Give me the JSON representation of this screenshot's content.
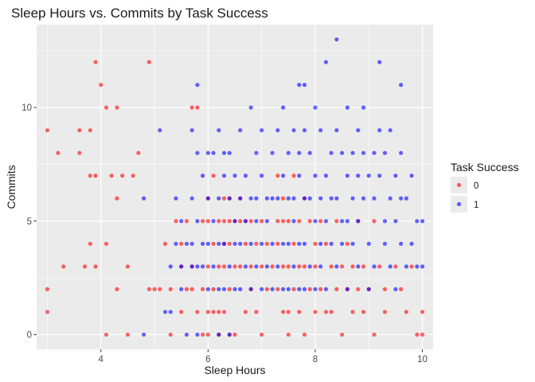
{
  "chart_data": {
    "type": "scatter",
    "title": "Sleep Hours vs. Commits by Task Success",
    "xlabel": "Sleep Hours",
    "ylabel": "Commits",
    "xlim": [
      2.8,
      10.2
    ],
    "ylim": [
      -0.65,
      13.65
    ],
    "x_ticks": [
      4,
      6,
      8,
      10
    ],
    "y_ticks": [
      0,
      5,
      10
    ],
    "grid": true,
    "legend": {
      "title": "Task Success",
      "placement": "right"
    },
    "series": [
      {
        "name": "0",
        "color": "#ff0000",
        "points": [
          [
            3.0,
            9
          ],
          [
            3.0,
            2
          ],
          [
            3.0,
            1
          ],
          [
            3.2,
            8
          ],
          [
            3.3,
            3
          ],
          [
            3.6,
            9
          ],
          [
            3.6,
            8
          ],
          [
            3.7,
            3
          ],
          [
            3.8,
            9
          ],
          [
            3.8,
            7
          ],
          [
            3.8,
            4
          ],
          [
            3.9,
            12
          ],
          [
            3.9,
            7
          ],
          [
            3.9,
            3
          ],
          [
            4.0,
            11
          ],
          [
            4.1,
            10
          ],
          [
            4.1,
            4
          ],
          [
            4.1,
            0
          ],
          [
            4.2,
            7
          ],
          [
            4.3,
            10
          ],
          [
            4.3,
            6
          ],
          [
            4.3,
            2
          ],
          [
            4.4,
            7
          ],
          [
            4.5,
            3
          ],
          [
            4.5,
            0
          ],
          [
            4.6,
            7
          ],
          [
            4.7,
            8
          ],
          [
            4.9,
            12
          ],
          [
            4.9,
            2
          ],
          [
            5.0,
            2
          ],
          [
            5.1,
            2
          ],
          [
            5.2,
            4
          ],
          [
            5.3,
            2
          ],
          [
            5.3,
            0
          ],
          [
            5.4,
            5
          ],
          [
            5.5,
            4
          ],
          [
            5.5,
            3
          ],
          [
            5.5,
            1
          ],
          [
            5.6,
            5
          ],
          [
            5.6,
            2
          ],
          [
            5.7,
            10
          ],
          [
            5.7,
            3
          ],
          [
            5.7,
            2
          ],
          [
            5.8,
            10
          ],
          [
            5.8,
            1
          ],
          [
            5.9,
            5
          ],
          [
            5.9,
            2
          ],
          [
            5.9,
            0
          ],
          [
            6.0,
            6
          ],
          [
            6.0,
            5
          ],
          [
            6.0,
            3
          ],
          [
            6.0,
            1
          ],
          [
            6.0,
            0
          ],
          [
            6.1,
            7
          ],
          [
            6.1,
            4
          ],
          [
            6.1,
            2
          ],
          [
            6.1,
            1
          ],
          [
            6.2,
            5
          ],
          [
            6.2,
            3
          ],
          [
            6.2,
            1
          ],
          [
            6.2,
            0
          ],
          [
            6.3,
            6
          ],
          [
            6.3,
            5
          ],
          [
            6.3,
            4
          ],
          [
            6.3,
            3
          ],
          [
            6.3,
            1
          ],
          [
            6.4,
            6
          ],
          [
            6.4,
            5
          ],
          [
            6.4,
            4
          ],
          [
            6.4,
            2
          ],
          [
            6.4,
            0
          ],
          [
            6.5,
            5
          ],
          [
            6.5,
            3
          ],
          [
            6.5,
            0
          ],
          [
            6.6,
            6
          ],
          [
            6.6,
            5
          ],
          [
            6.6,
            3
          ],
          [
            6.7,
            5
          ],
          [
            6.7,
            4
          ],
          [
            6.7,
            1
          ],
          [
            6.8,
            5
          ],
          [
            6.8,
            3
          ],
          [
            6.8,
            2
          ],
          [
            6.9,
            4
          ],
          [
            6.9,
            1
          ],
          [
            7.0,
            5
          ],
          [
            7.0,
            3
          ],
          [
            7.0,
            0
          ],
          [
            7.1,
            4
          ],
          [
            7.1,
            2
          ],
          [
            7.2,
            3
          ],
          [
            7.3,
            7
          ],
          [
            7.3,
            5
          ],
          [
            7.3,
            4
          ],
          [
            7.3,
            2
          ],
          [
            7.4,
            6
          ],
          [
            7.4,
            5
          ],
          [
            7.4,
            3
          ],
          [
            7.4,
            1
          ],
          [
            7.5,
            5
          ],
          [
            7.5,
            3
          ],
          [
            7.5,
            1
          ],
          [
            7.5,
            0
          ],
          [
            7.6,
            7
          ],
          [
            7.6,
            4
          ],
          [
            7.6,
            2
          ],
          [
            7.7,
            5
          ],
          [
            7.7,
            3
          ],
          [
            7.7,
            1
          ],
          [
            7.8,
            6
          ],
          [
            7.8,
            3
          ],
          [
            7.8,
            0
          ],
          [
            7.9,
            5
          ],
          [
            7.9,
            2
          ],
          [
            8.0,
            4
          ],
          [
            8.0,
            3
          ],
          [
            8.0,
            1
          ],
          [
            8.1,
            5
          ],
          [
            8.1,
            2
          ],
          [
            8.2,
            4
          ],
          [
            8.2,
            1
          ],
          [
            8.3,
            3
          ],
          [
            8.3,
            1
          ],
          [
            8.4,
            5
          ],
          [
            8.4,
            2
          ],
          [
            8.5,
            3
          ],
          [
            8.5,
            0
          ],
          [
            8.6,
            4
          ],
          [
            8.6,
            2
          ],
          [
            8.7,
            3
          ],
          [
            8.7,
            1
          ],
          [
            8.8,
            5
          ],
          [
            8.8,
            2
          ],
          [
            8.9,
            3
          ],
          [
            8.9,
            1
          ],
          [
            9.0,
            2
          ],
          [
            9.1,
            5
          ],
          [
            9.1,
            0
          ],
          [
            9.2,
            3
          ],
          [
            9.3,
            2
          ],
          [
            9.3,
            1
          ],
          [
            9.5,
            3
          ],
          [
            9.6,
            2
          ],
          [
            9.7,
            1
          ],
          [
            9.8,
            3
          ],
          [
            9.9,
            0
          ],
          [
            10.0,
            0
          ],
          [
            10.0,
            1
          ]
        ]
      },
      {
        "name": "1",
        "color": "#0000ff",
        "points": [
          [
            4.8,
            6
          ],
          [
            4.8,
            0
          ],
          [
            5.1,
            9
          ],
          [
            5.2,
            1
          ],
          [
            5.3,
            3
          ],
          [
            5.3,
            1
          ],
          [
            5.4,
            6
          ],
          [
            5.4,
            4
          ],
          [
            5.5,
            5
          ],
          [
            5.5,
            3
          ],
          [
            5.5,
            2
          ],
          [
            5.6,
            4
          ],
          [
            5.6,
            0
          ],
          [
            5.7,
            9
          ],
          [
            5.7,
            6
          ],
          [
            5.7,
            4
          ],
          [
            5.7,
            3
          ],
          [
            5.8,
            11
          ],
          [
            5.8,
            8
          ],
          [
            5.8,
            5
          ],
          [
            5.8,
            3
          ],
          [
            5.8,
            0
          ],
          [
            5.9,
            7
          ],
          [
            5.9,
            4
          ],
          [
            5.9,
            3
          ],
          [
            6.0,
            8
          ],
          [
            6.0,
            6
          ],
          [
            6.0,
            4
          ],
          [
            6.0,
            2
          ],
          [
            6.1,
            8
          ],
          [
            6.1,
            5
          ],
          [
            6.1,
            3
          ],
          [
            6.2,
            9
          ],
          [
            6.2,
            6
          ],
          [
            6.2,
            4
          ],
          [
            6.2,
            2
          ],
          [
            6.2,
            0
          ],
          [
            6.3,
            8
          ],
          [
            6.3,
            7
          ],
          [
            6.3,
            4
          ],
          [
            6.3,
            2
          ],
          [
            6.4,
            8
          ],
          [
            6.4,
            6
          ],
          [
            6.4,
            3
          ],
          [
            6.4,
            0
          ],
          [
            6.5,
            7
          ],
          [
            6.5,
            5
          ],
          [
            6.5,
            4
          ],
          [
            6.5,
            2
          ],
          [
            6.6,
            9
          ],
          [
            6.6,
            6
          ],
          [
            6.6,
            4
          ],
          [
            6.6,
            2
          ],
          [
            6.7,
            7
          ],
          [
            6.7,
            5
          ],
          [
            6.7,
            3
          ],
          [
            6.8,
            10
          ],
          [
            6.8,
            6
          ],
          [
            6.8,
            4
          ],
          [
            6.8,
            2
          ],
          [
            6.9,
            8
          ],
          [
            6.9,
            6
          ],
          [
            6.9,
            5
          ],
          [
            6.9,
            3
          ],
          [
            7.0,
            9
          ],
          [
            7.0,
            7
          ],
          [
            7.0,
            4
          ],
          [
            7.0,
            2
          ],
          [
            7.1,
            6
          ],
          [
            7.1,
            5
          ],
          [
            7.1,
            3
          ],
          [
            7.2,
            8
          ],
          [
            7.2,
            6
          ],
          [
            7.2,
            4
          ],
          [
            7.2,
            2
          ],
          [
            7.3,
            9
          ],
          [
            7.3,
            6
          ],
          [
            7.3,
            3
          ],
          [
            7.4,
            10
          ],
          [
            7.4,
            7
          ],
          [
            7.4,
            4
          ],
          [
            7.4,
            2
          ],
          [
            7.5,
            8
          ],
          [
            7.5,
            6
          ],
          [
            7.5,
            4
          ],
          [
            7.5,
            2
          ],
          [
            7.6,
            9
          ],
          [
            7.6,
            6
          ],
          [
            7.6,
            5
          ],
          [
            7.6,
            3
          ],
          [
            7.7,
            11
          ],
          [
            7.7,
            8
          ],
          [
            7.7,
            7
          ],
          [
            7.7,
            4
          ],
          [
            7.7,
            2
          ],
          [
            7.8,
            11
          ],
          [
            7.8,
            9
          ],
          [
            7.8,
            6
          ],
          [
            7.8,
            4
          ],
          [
            7.8,
            2
          ],
          [
            7.9,
            8
          ],
          [
            7.9,
            6
          ],
          [
            7.9,
            3
          ],
          [
            8.0,
            10
          ],
          [
            8.0,
            7
          ],
          [
            8.0,
            5
          ],
          [
            8.0,
            2
          ],
          [
            8.1,
            9
          ],
          [
            8.1,
            6
          ],
          [
            8.1,
            4
          ],
          [
            8.1,
            3
          ],
          [
            8.2,
            12
          ],
          [
            8.2,
            7
          ],
          [
            8.2,
            5
          ],
          [
            8.2,
            2
          ],
          [
            8.3,
            8
          ],
          [
            8.3,
            6
          ],
          [
            8.3,
            4
          ],
          [
            8.4,
            13
          ],
          [
            8.4,
            9
          ],
          [
            8.4,
            6
          ],
          [
            8.4,
            3
          ],
          [
            8.5,
            8
          ],
          [
            8.5,
            5
          ],
          [
            8.5,
            4
          ],
          [
            8.6,
            10
          ],
          [
            8.6,
            7
          ],
          [
            8.6,
            5
          ],
          [
            8.6,
            2
          ],
          [
            8.7,
            8
          ],
          [
            8.7,
            6
          ],
          [
            8.7,
            4
          ],
          [
            8.8,
            9
          ],
          [
            8.8,
            7
          ],
          [
            8.8,
            5
          ],
          [
            8.8,
            3
          ],
          [
            8.9,
            10
          ],
          [
            8.9,
            8
          ],
          [
            8.9,
            6
          ],
          [
            9.0,
            7
          ],
          [
            9.0,
            4
          ],
          [
            9.0,
            2
          ],
          [
            9.1,
            8
          ],
          [
            9.1,
            6
          ],
          [
            9.1,
            3
          ],
          [
            9.2,
            12
          ],
          [
            9.2,
            9
          ],
          [
            9.2,
            7
          ],
          [
            9.3,
            8
          ],
          [
            9.3,
            5
          ],
          [
            9.3,
            4
          ],
          [
            9.4,
            9
          ],
          [
            9.4,
            6
          ],
          [
            9.4,
            3
          ],
          [
            9.5,
            7
          ],
          [
            9.5,
            5
          ],
          [
            9.5,
            2
          ],
          [
            9.6,
            11
          ],
          [
            9.6,
            8
          ],
          [
            9.6,
            6
          ],
          [
            9.6,
            4
          ],
          [
            9.7,
            6
          ],
          [
            9.7,
            3
          ],
          [
            9.8,
            7
          ],
          [
            9.8,
            4
          ],
          [
            9.9,
            5
          ],
          [
            9.9,
            3
          ],
          [
            10.0,
            5
          ],
          [
            10.0,
            3
          ]
        ]
      }
    ]
  }
}
